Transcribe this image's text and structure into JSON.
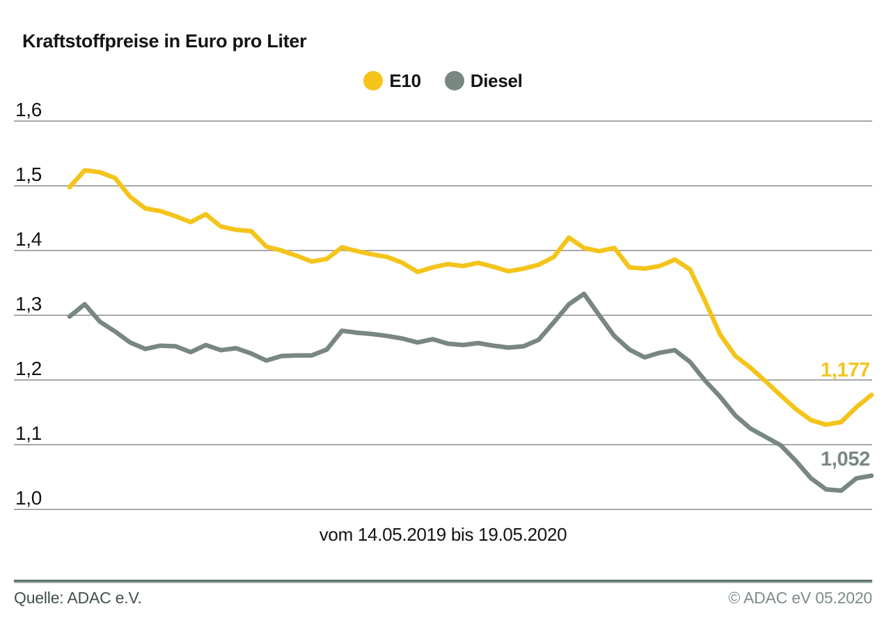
{
  "title": "Kraftstoffpreise in Euro pro Liter",
  "legend": [
    {
      "label": "E10",
      "color": "#F4C41B"
    },
    {
      "label": "Diesel",
      "color": "#788780"
    }
  ],
  "footer": {
    "source": "Quelle: ADAC e.V.",
    "copyright": "© ADAC eV 05.2020"
  },
  "colors": {
    "e10": "#F4C41B",
    "diesel": "#788780",
    "grid": "#9B9B9B",
    "text": "#141414"
  },
  "chart_data": {
    "type": "line",
    "title": "Kraftstoffpreise in Euro pro Liter",
    "xlabel": "vom 14.05.2019 bis 19.05.2020",
    "ylabel": "",
    "ylim": [
      1.0,
      1.6
    ],
    "grid": true,
    "legend_position": "top-center",
    "yticks": [
      {
        "value": 1.6,
        "label": "1,6"
      },
      {
        "value": 1.5,
        "label": "1,5"
      },
      {
        "value": 1.4,
        "label": "1,4"
      },
      {
        "value": 1.3,
        "label": "1,3"
      },
      {
        "value": 1.2,
        "label": "1,2"
      },
      {
        "value": 1.1,
        "label": "1,1"
      },
      {
        "value": 1.0,
        "label": "1,0"
      }
    ],
    "series": [
      {
        "name": "E10",
        "color": "#F4C41B",
        "end_label": "1,177",
        "values": [
          1.498,
          1.524,
          1.521,
          1.512,
          1.483,
          1.465,
          1.461,
          1.453,
          1.444,
          1.456,
          1.437,
          1.432,
          1.43,
          1.406,
          1.4,
          1.392,
          1.383,
          1.387,
          1.405,
          1.399,
          1.394,
          1.39,
          1.381,
          1.367,
          1.374,
          1.379,
          1.376,
          1.381,
          1.375,
          1.368,
          1.372,
          1.378,
          1.39,
          1.42,
          1.404,
          1.399,
          1.404,
          1.374,
          1.372,
          1.376,
          1.386,
          1.371,
          1.322,
          1.27,
          1.237,
          1.219,
          1.198,
          1.176,
          1.155,
          1.138,
          1.131,
          1.135,
          1.158,
          1.177
        ]
      },
      {
        "name": "Diesel",
        "color": "#788780",
        "end_label": "1,052",
        "values": [
          1.298,
          1.317,
          1.29,
          1.275,
          1.258,
          1.248,
          1.253,
          1.252,
          1.243,
          1.254,
          1.246,
          1.249,
          1.241,
          1.23,
          1.237,
          1.238,
          1.238,
          1.247,
          1.276,
          1.273,
          1.271,
          1.268,
          1.264,
          1.258,
          1.263,
          1.256,
          1.254,
          1.257,
          1.253,
          1.25,
          1.252,
          1.262,
          1.289,
          1.317,
          1.333,
          1.3,
          1.268,
          1.247,
          1.235,
          1.242,
          1.246,
          1.228,
          1.199,
          1.174,
          1.145,
          1.125,
          1.112,
          1.099,
          1.075,
          1.048,
          1.031,
          1.029,
          1.048,
          1.052
        ]
      }
    ]
  }
}
